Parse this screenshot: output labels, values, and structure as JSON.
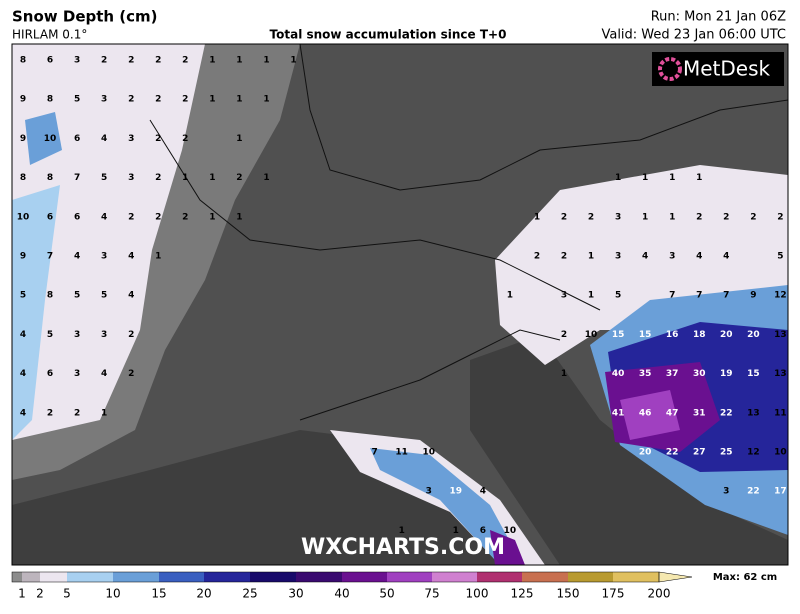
{
  "header": {
    "title": "Snow Depth (cm)",
    "model": "HIRLAM 0.1°",
    "subtitle": "Total snow accumulation since T+0",
    "run": "Run: Mon 21 Jan 06Z",
    "valid": "Valid: Wed 23 Jan 06:00 UTC"
  },
  "logo": "MetDesk",
  "watermark": "WXCHARTS.COM",
  "map": {
    "grid_values": [
      [
        8,
        6,
        3,
        2,
        2,
        2,
        2,
        1,
        1,
        1,
        1,
        null,
        null,
        null,
        null,
        null,
        null,
        null,
        null,
        null,
        null,
        null,
        null,
        null,
        null,
        null,
        null,
        null,
        null
      ],
      [
        9,
        8,
        5,
        3,
        2,
        2,
        2,
        1,
        1,
        1,
        null,
        null,
        null,
        null,
        null,
        null,
        null,
        null,
        null,
        null,
        null,
        null,
        null,
        null,
        null,
        null,
        null,
        null,
        null
      ],
      [
        9,
        10,
        6,
        4,
        3,
        2,
        2,
        null,
        1,
        null,
        null,
        null,
        null,
        null,
        null,
        null,
        null,
        null,
        null,
        null,
        null,
        null,
        null,
        null,
        null,
        null,
        null,
        null,
        null
      ],
      [
        8,
        8,
        7,
        5,
        3,
        2,
        1,
        1,
        2,
        1,
        null,
        null,
        null,
        null,
        null,
        null,
        null,
        null,
        null,
        null,
        null,
        null,
        1,
        1,
        1,
        1,
        null,
        null,
        null
      ],
      [
        10,
        6,
        6,
        4,
        2,
        2,
        2,
        1,
        1,
        null,
        null,
        null,
        null,
        null,
        null,
        null,
        null,
        null,
        null,
        1,
        2,
        2,
        3,
        1,
        1,
        2,
        2,
        2,
        2
      ],
      [
        9,
        7,
        4,
        3,
        4,
        1,
        null,
        null,
        null,
        null,
        null,
        null,
        null,
        null,
        null,
        null,
        null,
        null,
        null,
        2,
        2,
        1,
        3,
        4,
        3,
        4,
        4,
        null,
        5
      ],
      [
        5,
        8,
        5,
        5,
        4,
        null,
        null,
        null,
        null,
        null,
        null,
        null,
        null,
        null,
        null,
        null,
        null,
        null,
        1,
        null,
        3,
        1,
        5,
        null,
        7,
        7,
        7,
        9,
        12
      ],
      [
        4,
        5,
        3,
        3,
        2,
        null,
        null,
        null,
        null,
        null,
        null,
        null,
        null,
        null,
        null,
        null,
        null,
        null,
        null,
        null,
        2,
        10,
        15,
        15,
        16,
        18,
        20,
        20,
        13
      ],
      [
        4,
        6,
        3,
        4,
        2,
        null,
        null,
        null,
        null,
        null,
        null,
        null,
        null,
        null,
        null,
        null,
        null,
        null,
        null,
        null,
        1,
        null,
        40,
        35,
        37,
        30,
        19,
        15,
        13
      ],
      [
        4,
        2,
        2,
        1,
        null,
        null,
        null,
        null,
        null,
        null,
        null,
        null,
        null,
        null,
        null,
        null,
        null,
        null,
        null,
        null,
        null,
        null,
        41,
        46,
        47,
        31,
        22,
        13,
        11
      ],
      [
        null,
        null,
        null,
        null,
        null,
        null,
        null,
        null,
        null,
        null,
        null,
        null,
        null,
        7,
        11,
        10,
        null,
        null,
        null,
        null,
        null,
        null,
        null,
        20,
        22,
        27,
        25,
        12,
        10
      ],
      [
        null,
        null,
        null,
        null,
        null,
        null,
        null,
        null,
        null,
        null,
        null,
        null,
        null,
        null,
        null,
        3,
        19,
        4,
        null,
        null,
        null,
        null,
        null,
        null,
        null,
        null,
        3,
        22,
        17
      ],
      [
        null,
        null,
        null,
        null,
        null,
        null,
        null,
        null,
        null,
        null,
        null,
        null,
        null,
        null,
        1,
        null,
        1,
        6,
        10,
        null,
        null,
        null,
        null,
        null,
        null,
        null,
        null,
        null,
        null
      ]
    ]
  },
  "colorbar": {
    "labels": [
      1,
      2,
      5,
      10,
      15,
      20,
      25,
      30,
      40,
      50,
      75,
      100,
      125,
      150,
      175,
      200
    ],
    "colors": [
      "#8c8c8c",
      "#bdb5bd",
      "#ece6ef",
      "#a8d0f0",
      "#6a9fd8",
      "#3a5fc0",
      "#25259a",
      "#180a6a",
      "#3a0a70",
      "#6a1090",
      "#a040c0",
      "#d080d0",
      "#b03070",
      "#c87050",
      "#b89a30",
      "#e0c060",
      "#f5e8b0"
    ],
    "max_label": "Max: 62 cm"
  }
}
